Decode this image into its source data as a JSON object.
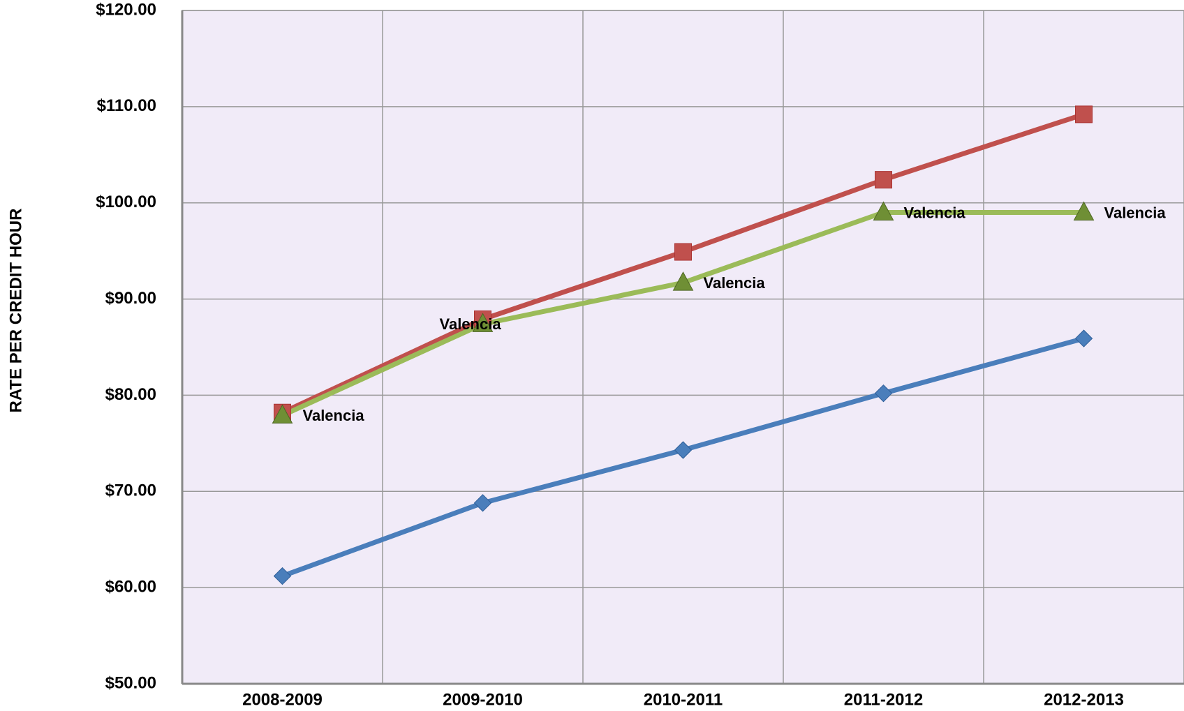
{
  "chart_data": {
    "type": "line",
    "y_axis_label": "RATE PER CREDIT HOUR",
    "categories": [
      "2008-2009",
      "2009-2010",
      "2010-2011",
      "2011-2012",
      "2012-2013"
    ],
    "series": [
      {
        "color": "#4a7ebb",
        "marker": "diamond",
        "values": [
          61.2,
          68.8,
          74.3,
          80.2,
          85.9
        ]
      },
      {
        "color": "#c0504d",
        "marker": "square",
        "values": [
          78.2,
          87.9,
          94.9,
          102.4,
          109.2
        ]
      },
      {
        "color": "#9bbb59",
        "marker": "triangle",
        "values": [
          77.9,
          87.4,
          91.7,
          99.0,
          99.0
        ],
        "point_labels": [
          "Valencia",
          "Valencia",
          "Valencia",
          "Valencia",
          "Valencia"
        ]
      }
    ],
    "ylim": [
      50,
      120
    ],
    "yticks": [
      {
        "value": 50,
        "label": "$50.00"
      },
      {
        "value": 60,
        "label": "$60.00"
      },
      {
        "value": 70,
        "label": "$70.00"
      },
      {
        "value": 80,
        "label": "$80.00"
      },
      {
        "value": 90,
        "label": "$90.00"
      },
      {
        "value": 100,
        "label": "$100.00"
      },
      {
        "value": 110,
        "label": "$110.00"
      },
      {
        "value": 120,
        "label": "$120.00"
      }
    ],
    "grid": true
  }
}
